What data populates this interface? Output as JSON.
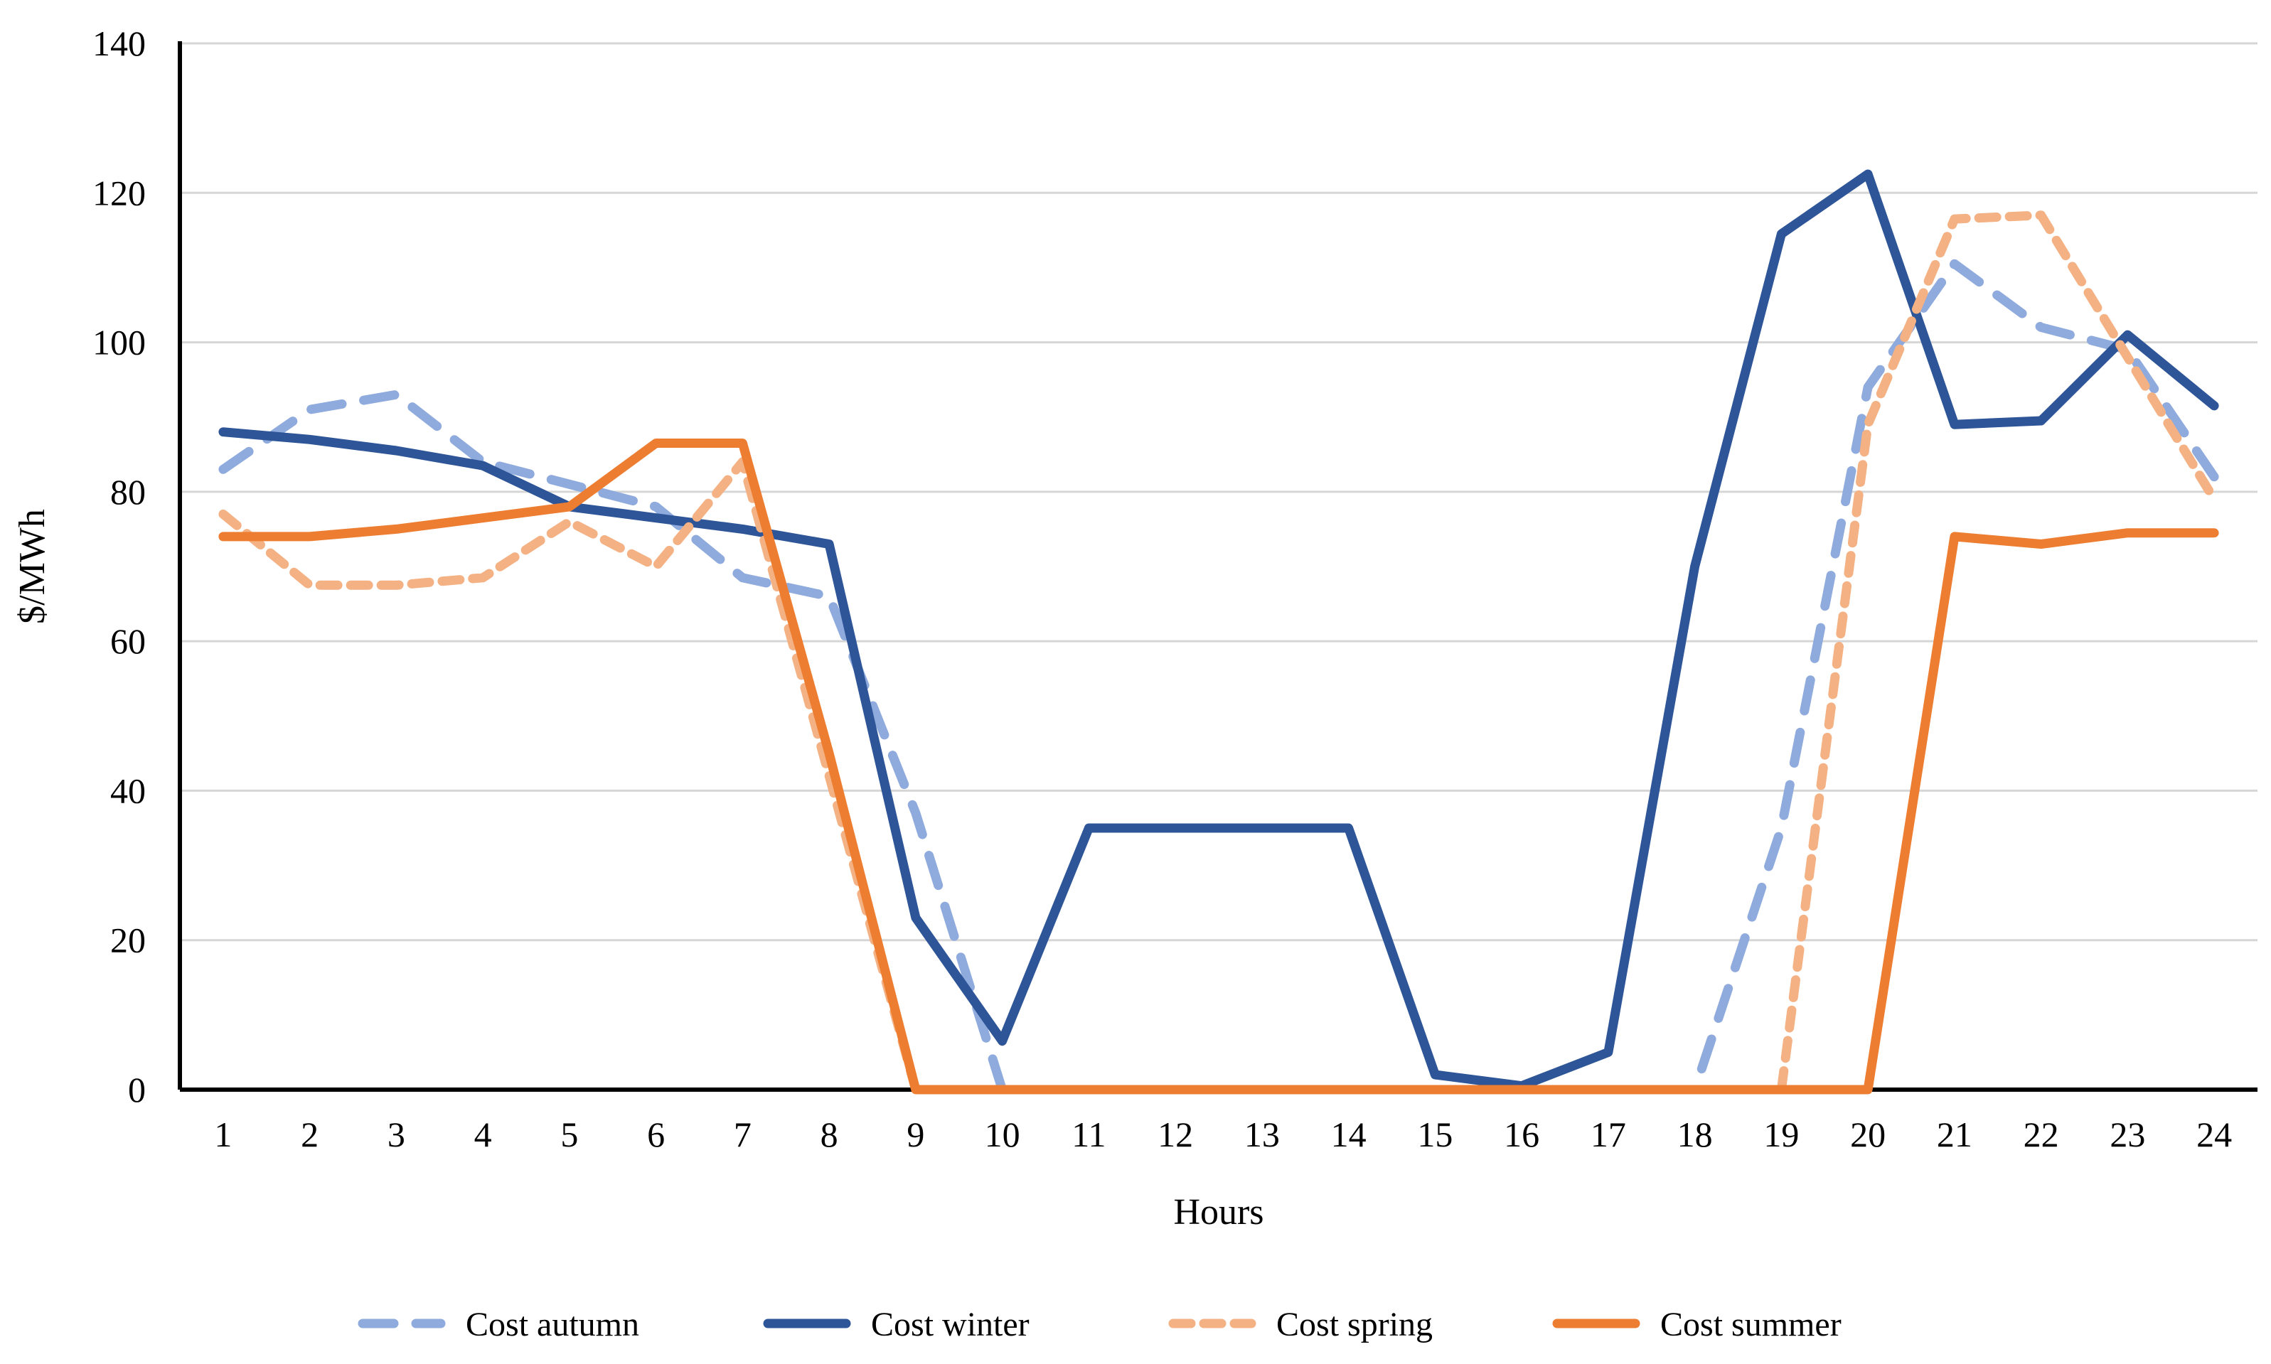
{
  "colors": {
    "background": "#FFFFFF",
    "gridline": "#D6D6D6",
    "axis": "#000000",
    "text": "#000000",
    "autumn": "#8FAADC",
    "winter": "#2E5597",
    "spring": "#F4B183",
    "summer": "#ED7D31"
  },
  "chart_data": {
    "type": "line",
    "title": "",
    "xlabel": "Hours",
    "ylabel": "$/MWh",
    "x_tick_labels": [
      "1",
      "2",
      "3",
      "4",
      "5",
      "6",
      "7",
      "8",
      "9",
      "10",
      "11",
      "12",
      "13",
      "14",
      "15",
      "16",
      "17",
      "18",
      "19",
      "20",
      "21",
      "22",
      "23",
      "24"
    ],
    "y_tick_labels": [
      "0",
      "20",
      "40",
      "60",
      "80",
      "100",
      "120",
      "140"
    ],
    "ylim": [
      0,
      140
    ],
    "ytick_step": 20,
    "grid": true,
    "legend_position": "bottom",
    "series": [
      {
        "name": "Cost autumn",
        "color": "#8FAADC",
        "style": "dashed-long",
        "values": [
          83,
          91,
          93,
          84,
          81,
          78,
          68.5,
          66,
          37,
          0,
          0,
          0,
          0,
          0,
          0,
          0,
          0,
          0,
          35,
          94,
          110.5,
          102,
          99,
          82
        ]
      },
      {
        "name": "Cost winter",
        "color": "#2E5597",
        "style": "solid",
        "values": [
          88,
          87,
          85.5,
          83.5,
          78,
          76.5,
          75,
          73,
          23,
          6.5,
          35,
          35,
          35,
          35,
          2,
          0.5,
          5,
          70,
          114.5,
          122.5,
          89,
          89.5,
          101,
          91.5
        ]
      },
      {
        "name": "Cost spring",
        "color": "#F4B183",
        "style": "dashed-short",
        "values": [
          77,
          67.5,
          67.5,
          68.5,
          76,
          70,
          84,
          42,
          0,
          0,
          0,
          0,
          0,
          0,
          0,
          0,
          0,
          0,
          0,
          89,
          116.5,
          117,
          98,
          79
        ]
      },
      {
        "name": "Cost summer",
        "color": "#ED7D31",
        "style": "solid",
        "values": [
          74,
          74,
          75,
          76.5,
          78,
          86.5,
          86.5,
          45,
          0,
          0,
          0,
          0,
          0,
          0,
          0,
          0,
          0,
          0,
          0,
          0,
          74,
          73,
          74.5,
          74.5
        ]
      }
    ]
  }
}
